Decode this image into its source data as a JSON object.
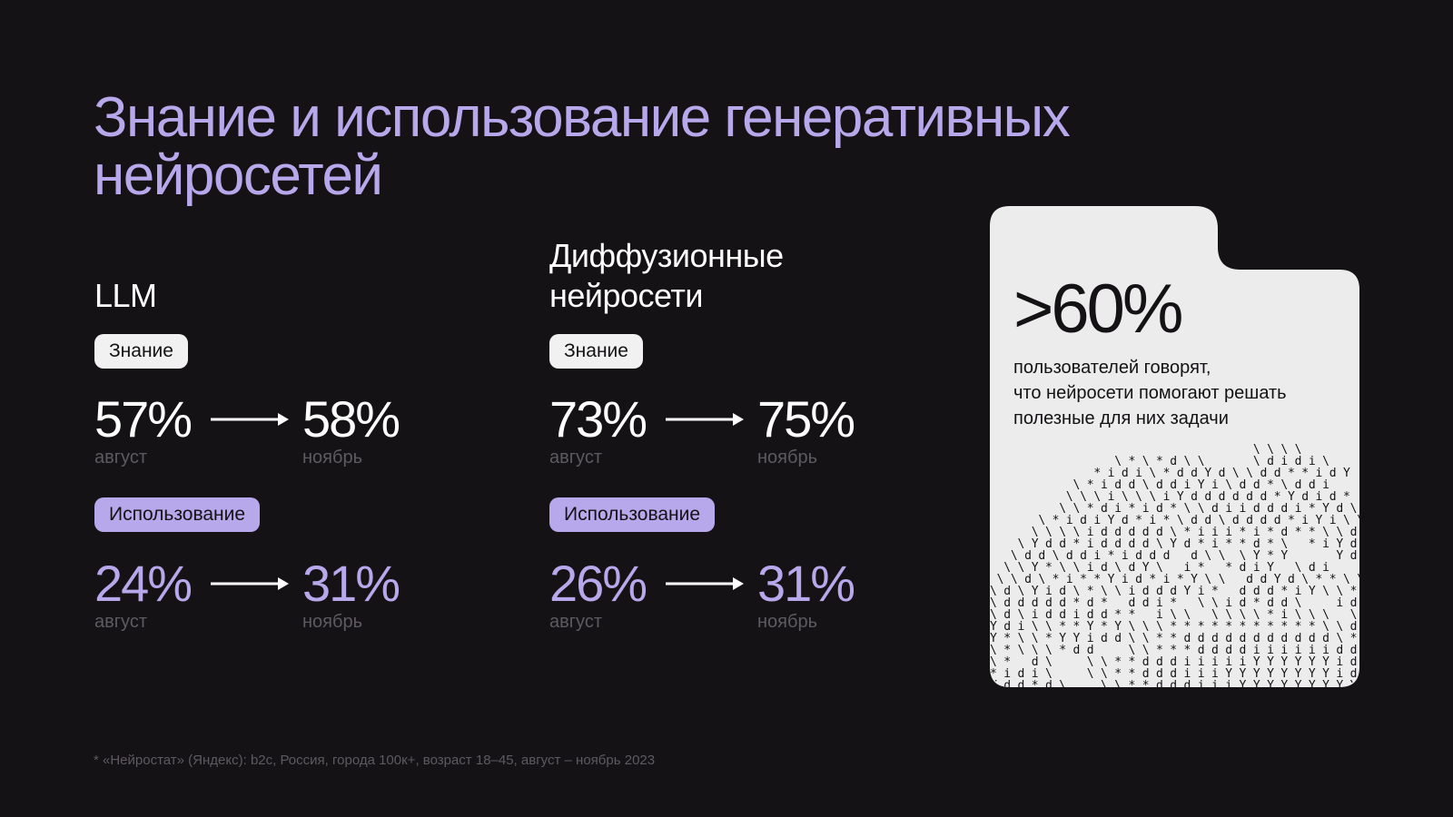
{
  "title": "Знание и использование генеративных\nнейросетей",
  "columns": {
    "llm": {
      "heading": "LLM",
      "knowledge": {
        "pill": "Знание",
        "from_value": "57%",
        "from_label": "август",
        "to_value": "58%",
        "to_label": "ноябрь"
      },
      "usage": {
        "pill": "Использование",
        "from_value": "24%",
        "from_label": "август",
        "to_value": "31%",
        "to_label": "ноябрь"
      }
    },
    "diffusion": {
      "heading": "Диффузионные\nнейросети",
      "knowledge": {
        "pill": "Знание",
        "from_value": "73%",
        "from_label": "август",
        "to_value": "75%",
        "to_label": "ноябрь"
      },
      "usage": {
        "pill": "Использование",
        "from_value": "26%",
        "from_label": "август",
        "to_value": "31%",
        "to_label": "ноябрь"
      }
    }
  },
  "card": {
    "big_value": ">60%",
    "text": "пользователей говорят,\nчто нейросети помогают решать\nполезные для них задачи"
  },
  "footnote": "* «Нейростат» (Яндекс): b2c, Россия, города 100к+, возраст 18–45, август – ноябрь 2023",
  "colors": {
    "background": "#141214",
    "accent_purple": "#b7a8ec",
    "muted_text": "#5d5a60",
    "card_bg": "#ececec"
  }
}
